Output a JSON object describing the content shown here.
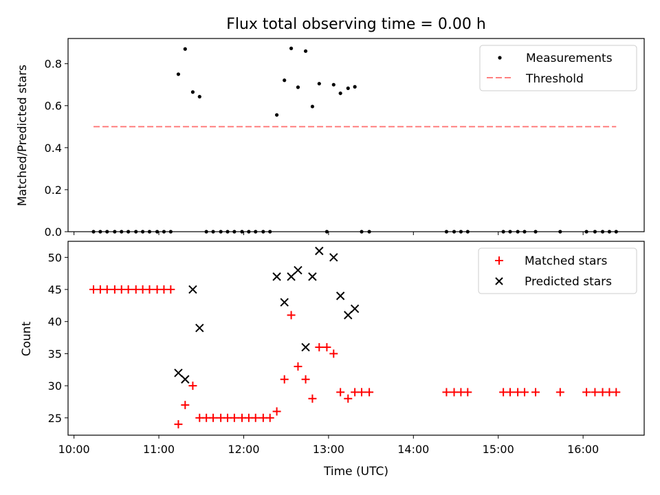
{
  "figure_title": "Flux total observing time = 0.00 h",
  "colors": {
    "measurement": "#000000",
    "threshold": "#ff7f7f",
    "matched": "#ff0000",
    "predicted": "#000000"
  },
  "chart_data": [
    {
      "type": "scatter",
      "panel": "top",
      "title": "Flux total observing time = 0.00 h",
      "xlabel": "",
      "ylabel": "Matched/Predicted stars",
      "xlim": [
        9.93,
        16.72
      ],
      "ylim": [
        0.0,
        0.92
      ],
      "yticks": [
        0.0,
        0.2,
        0.4,
        0.6,
        0.8
      ],
      "ytick_labels": [
        "0.0",
        "0.2",
        "0.4",
        "0.6",
        "0.8"
      ],
      "xticks": [
        10,
        11,
        12,
        13,
        14,
        15,
        16
      ],
      "legend_position": "top-right",
      "legend": [
        "Measurements",
        "Threshold"
      ],
      "series": [
        {
          "name": "Measurements",
          "marker": "dot",
          "points": [
            [
              10.23,
              0.0
            ],
            [
              10.31,
              0.0
            ],
            [
              10.39,
              0.0
            ],
            [
              10.48,
              0.0
            ],
            [
              10.56,
              0.0
            ],
            [
              10.64,
              0.0
            ],
            [
              10.73,
              0.0
            ],
            [
              10.81,
              0.0
            ],
            [
              10.89,
              0.0
            ],
            [
              10.98,
              0.0
            ],
            [
              11.06,
              0.0
            ],
            [
              11.14,
              0.0
            ],
            [
              11.23,
              0.75
            ],
            [
              11.31,
              0.87
            ],
            [
              11.4,
              0.665
            ],
            [
              11.48,
              0.643
            ],
            [
              11.56,
              0.0
            ],
            [
              11.64,
              0.0
            ],
            [
              11.73,
              0.0
            ],
            [
              11.81,
              0.0
            ],
            [
              11.89,
              0.0
            ],
            [
              11.98,
              0.0
            ],
            [
              12.06,
              0.0
            ],
            [
              12.14,
              0.0
            ],
            [
              12.23,
              0.0
            ],
            [
              12.31,
              0.0
            ],
            [
              12.39,
              0.556
            ],
            [
              12.48,
              0.721
            ],
            [
              12.56,
              0.873
            ],
            [
              12.64,
              0.688
            ],
            [
              12.73,
              0.86
            ],
            [
              12.81,
              0.596
            ],
            [
              12.89,
              0.705
            ],
            [
              12.98,
              0.0
            ],
            [
              13.06,
              0.7
            ],
            [
              13.14,
              0.659
            ],
            [
              13.23,
              0.683
            ],
            [
              13.31,
              0.69
            ],
            [
              13.39,
              0.0
            ],
            [
              13.48,
              0.0
            ],
            [
              14.39,
              0.0
            ],
            [
              14.48,
              0.0
            ],
            [
              14.56,
              0.0
            ],
            [
              14.64,
              0.0
            ],
            [
              15.06,
              0.0
            ],
            [
              15.14,
              0.0
            ],
            [
              15.23,
              0.0
            ],
            [
              15.31,
              0.0
            ],
            [
              15.44,
              0.0
            ],
            [
              15.73,
              0.0
            ],
            [
              16.04,
              0.0
            ],
            [
              16.14,
              0.0
            ],
            [
              16.23,
              0.0
            ],
            [
              16.31,
              0.0
            ],
            [
              16.39,
              0.0
            ]
          ]
        },
        {
          "name": "Threshold",
          "style": "dashed",
          "points": [
            [
              10.23,
              0.5
            ],
            [
              16.39,
              0.5
            ]
          ]
        }
      ]
    },
    {
      "type": "scatter",
      "panel": "bottom",
      "title": "",
      "xlabel": "Time (UTC)",
      "ylabel": "Count",
      "xlim": [
        9.93,
        16.72
      ],
      "ylim": [
        22.3,
        52.5
      ],
      "yticks": [
        25,
        30,
        35,
        40,
        45,
        50
      ],
      "ytick_labels": [
        "25",
        "30",
        "35",
        "40",
        "45",
        "50"
      ],
      "xticks": [
        10,
        11,
        12,
        13,
        14,
        15,
        16
      ],
      "xtick_labels": [
        "10:00",
        "11:00",
        "12:00",
        "13:00",
        "14:00",
        "15:00",
        "16:00"
      ],
      "legend_position": "top-right",
      "legend": [
        "Matched stars",
        "Predicted stars"
      ],
      "series": [
        {
          "name": "Matched stars",
          "marker": "plus",
          "points": [
            [
              10.23,
              45
            ],
            [
              10.31,
              45
            ],
            [
              10.39,
              45
            ],
            [
              10.48,
              45
            ],
            [
              10.56,
              45
            ],
            [
              10.64,
              45
            ],
            [
              10.73,
              45
            ],
            [
              10.81,
              45
            ],
            [
              10.89,
              45
            ],
            [
              10.98,
              45
            ],
            [
              11.06,
              45
            ],
            [
              11.14,
              45
            ],
            [
              11.23,
              24
            ],
            [
              11.31,
              27
            ],
            [
              11.4,
              30
            ],
            [
              11.48,
              25
            ],
            [
              11.56,
              25
            ],
            [
              11.64,
              25
            ],
            [
              11.73,
              25
            ],
            [
              11.81,
              25
            ],
            [
              11.89,
              25
            ],
            [
              11.98,
              25
            ],
            [
              12.06,
              25
            ],
            [
              12.14,
              25
            ],
            [
              12.23,
              25
            ],
            [
              12.31,
              25
            ],
            [
              12.39,
              26
            ],
            [
              12.48,
              31
            ],
            [
              12.56,
              41
            ],
            [
              12.64,
              33
            ],
            [
              12.73,
              31
            ],
            [
              12.81,
              28
            ],
            [
              12.89,
              36
            ],
            [
              12.98,
              36
            ],
            [
              13.06,
              35
            ],
            [
              13.14,
              29
            ],
            [
              13.23,
              28
            ],
            [
              13.31,
              29
            ],
            [
              13.39,
              29
            ],
            [
              13.48,
              29
            ],
            [
              14.39,
              29
            ],
            [
              14.48,
              29
            ],
            [
              14.56,
              29
            ],
            [
              14.64,
              29
            ],
            [
              15.06,
              29
            ],
            [
              15.14,
              29
            ],
            [
              15.23,
              29
            ],
            [
              15.31,
              29
            ],
            [
              15.44,
              29
            ],
            [
              15.73,
              29
            ],
            [
              16.04,
              29
            ],
            [
              16.14,
              29
            ],
            [
              16.23,
              29
            ],
            [
              16.31,
              29
            ],
            [
              16.39,
              29
            ]
          ]
        },
        {
          "name": "Predicted stars",
          "marker": "x",
          "points": [
            [
              11.23,
              32
            ],
            [
              11.31,
              31
            ],
            [
              11.4,
              45
            ],
            [
              11.48,
              39
            ],
            [
              12.39,
              47
            ],
            [
              12.48,
              43
            ],
            [
              12.56,
              47
            ],
            [
              12.64,
              48
            ],
            [
              12.73,
              36
            ],
            [
              12.81,
              47
            ],
            [
              12.89,
              51
            ],
            [
              13.06,
              50
            ],
            [
              13.14,
              44
            ],
            [
              13.23,
              41
            ],
            [
              13.31,
              42
            ]
          ]
        }
      ]
    }
  ]
}
